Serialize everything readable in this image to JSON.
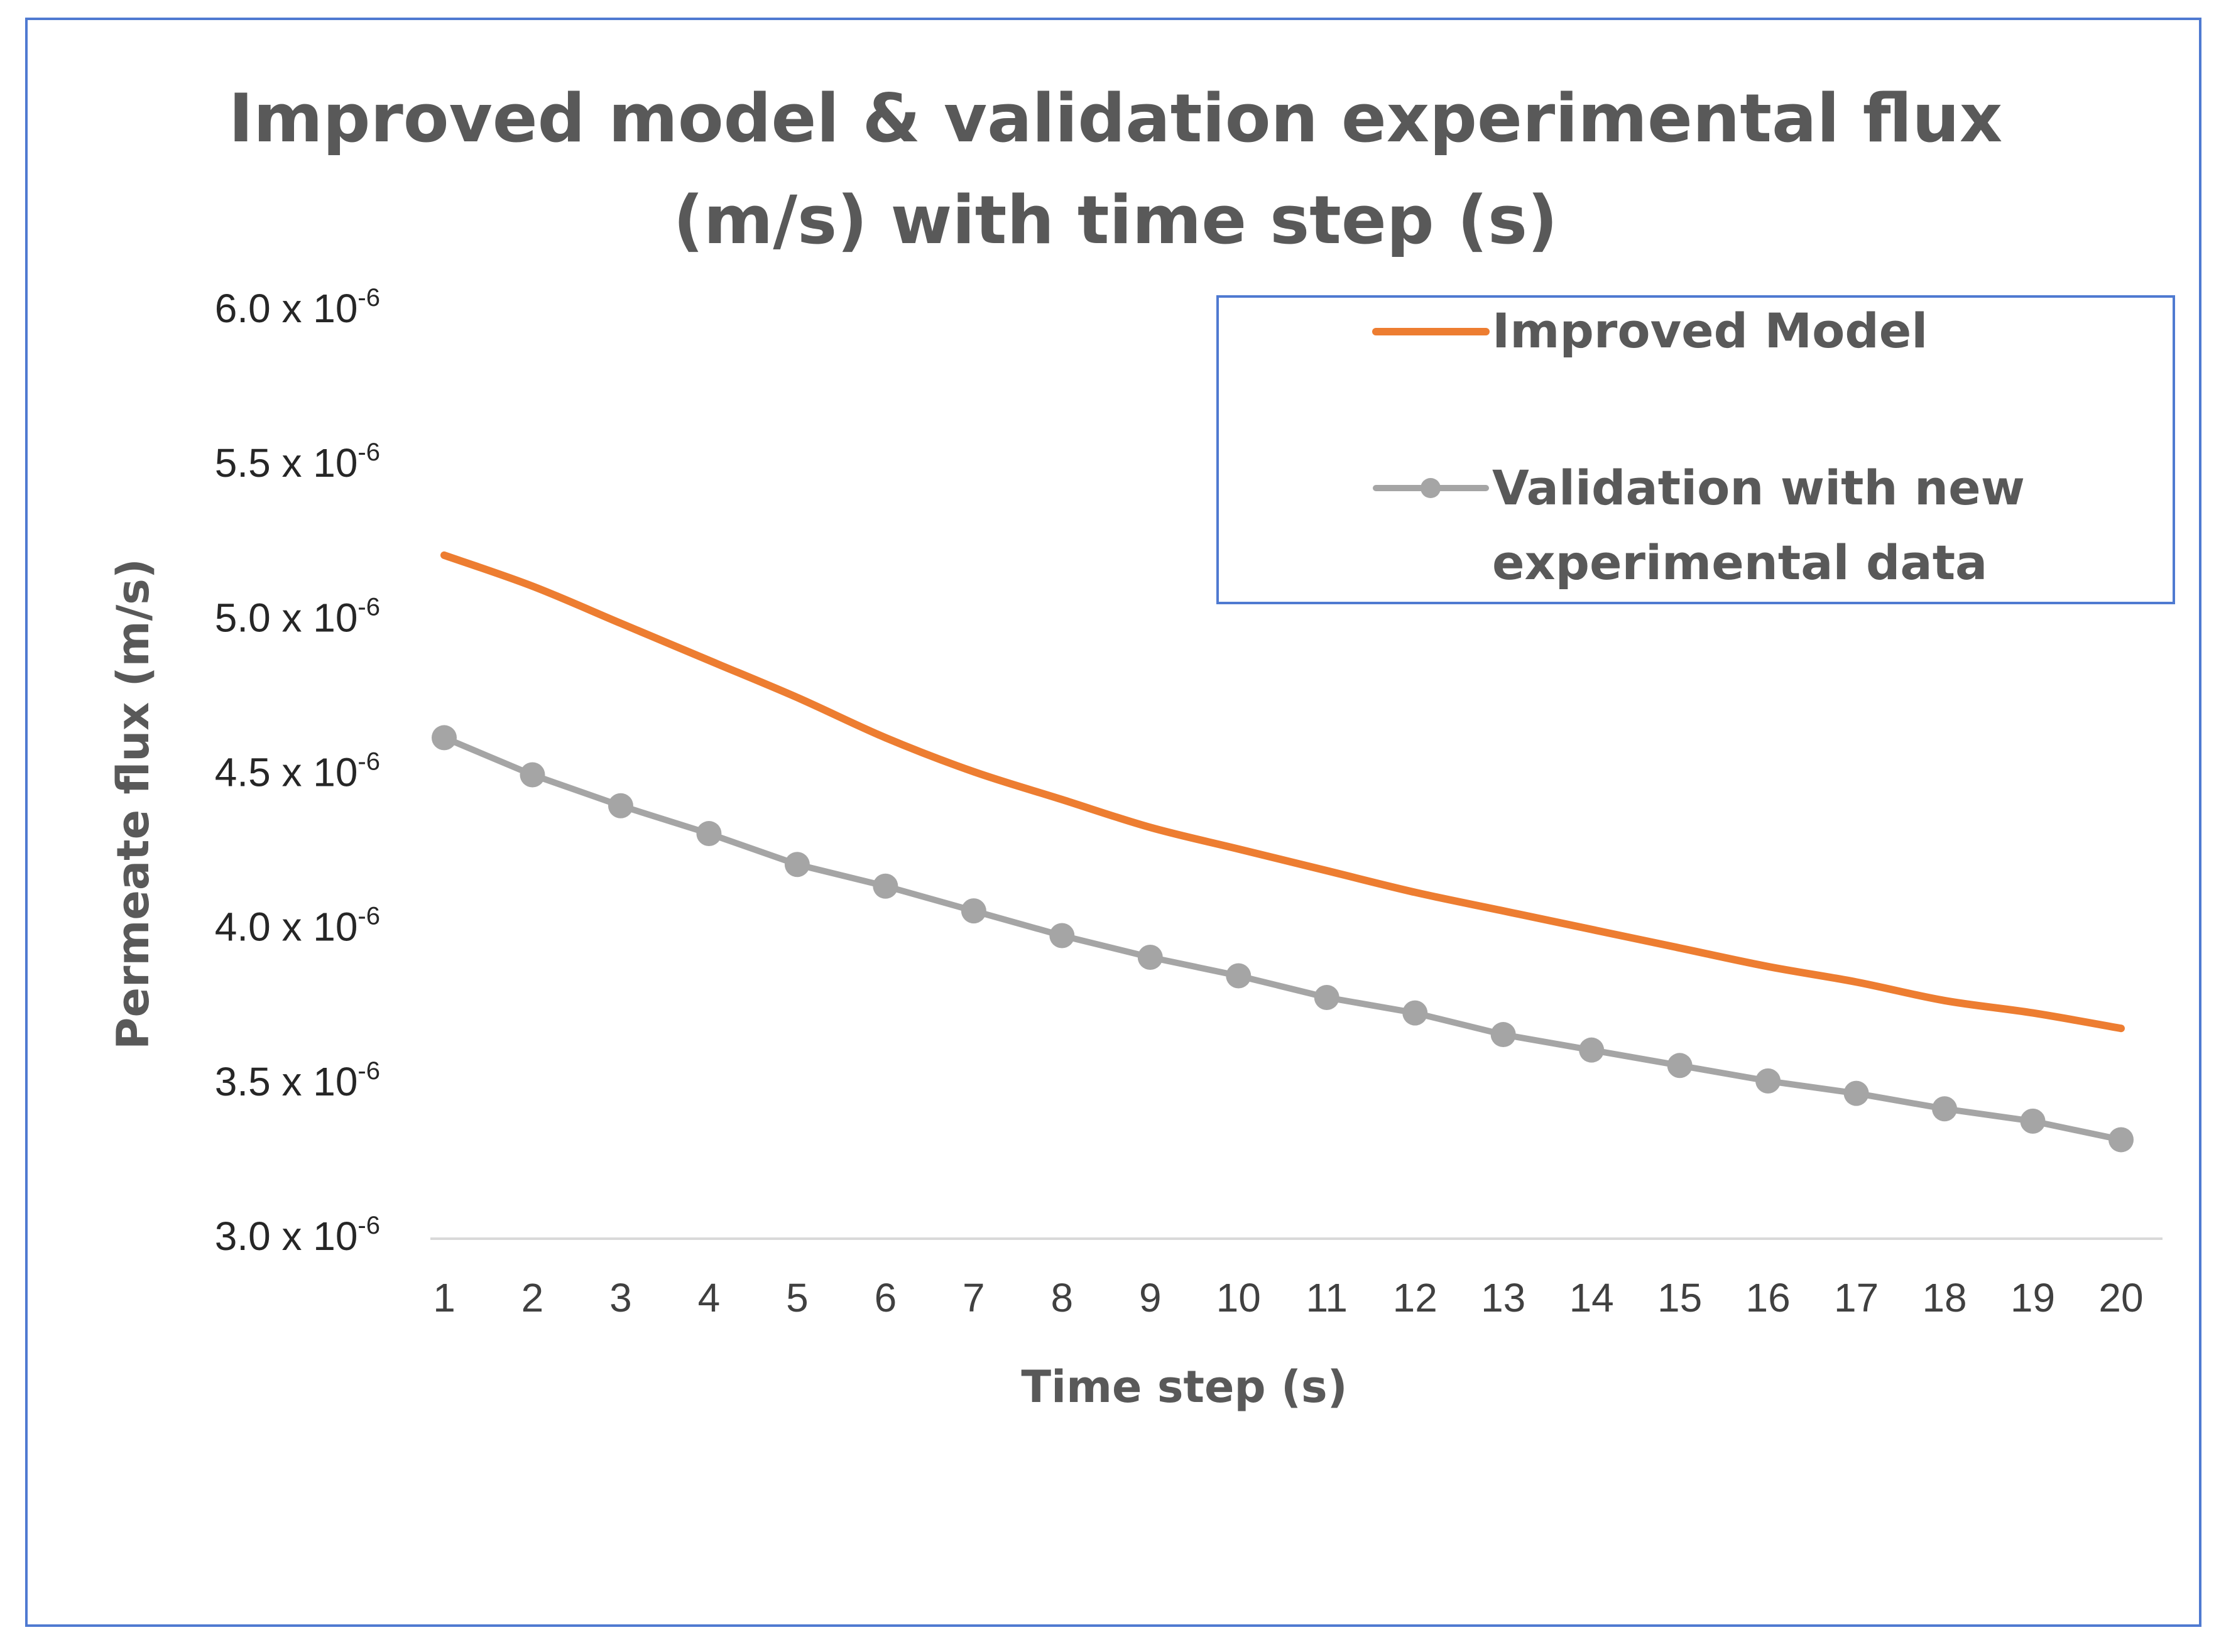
{
  "chart_data": {
    "type": "line",
    "title_lines": [
      "Improved model & validation experimental  flux",
      "(m/s) with time step (s)"
    ],
    "xlabel": "Time step (s)",
    "ylabel": "Permeate flux (m/s)",
    "categories": [
      "1",
      "2",
      "3",
      "4",
      "5",
      "6",
      "7",
      "8",
      "9",
      "10",
      "11",
      "12",
      "13",
      "14",
      "15",
      "16",
      "17",
      "18",
      "19",
      "20"
    ],
    "y_ticks": [
      {
        "mant": "3.0 x 10",
        "exp": "-6",
        "value": 3.0
      },
      {
        "mant": "3.5 x 10",
        "exp": "-6",
        "value": 3.5
      },
      {
        "mant": "4.0 x 10",
        "exp": "-6",
        "value": 4.0
      },
      {
        "mant": "4.5 x 10",
        "exp": "-6",
        "value": 4.5
      },
      {
        "mant": "5.0 x 10",
        "exp": "-6",
        "value": 5.0
      },
      {
        "mant": "5.5 x 10",
        "exp": "-6",
        "value": 5.5
      },
      {
        "mant": "6.0 x 10",
        "exp": "-6",
        "value": 6.0
      }
    ],
    "y_unit_scale": "1e-6",
    "ylim": [
      3.0,
      6.0
    ],
    "legend": {
      "position": "top-right"
    },
    "series": [
      {
        "name": "Improved Model",
        "color": "#ed7d31",
        "marker": "none",
        "values": [
          5.21,
          5.11,
          4.99,
          4.87,
          4.75,
          4.62,
          4.51,
          4.42,
          4.33,
          4.26,
          4.19,
          4.12,
          4.06,
          4.0,
          3.94,
          3.88,
          3.83,
          3.77,
          3.73,
          3.68
        ]
      },
      {
        "name": "Validation with new experimental data",
        "legend_lines": [
          "Validation with new",
          "experimental data"
        ],
        "color": "#a5a5a5",
        "marker": "circle",
        "values": [
          4.62,
          4.5,
          4.4,
          4.31,
          4.21,
          4.14,
          4.06,
          3.98,
          3.91,
          3.85,
          3.78,
          3.73,
          3.66,
          3.61,
          3.56,
          3.51,
          3.47,
          3.42,
          3.38,
          3.32
        ]
      }
    ]
  }
}
